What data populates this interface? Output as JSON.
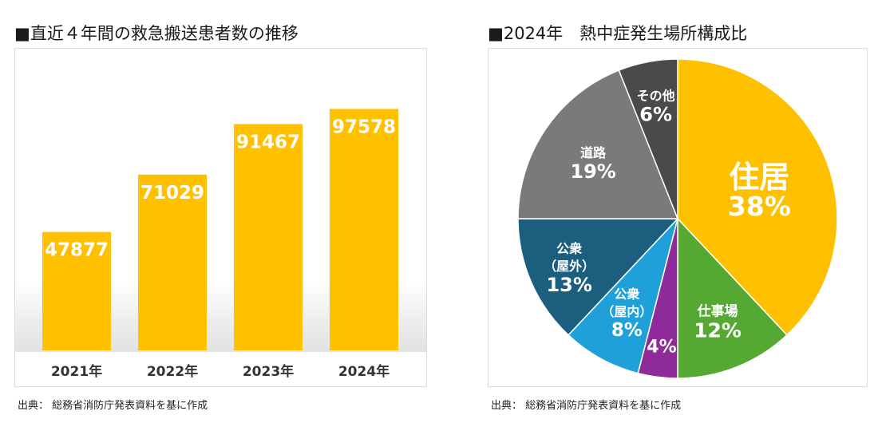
{
  "left": {
    "title": "■直近４年間の救急搬送患者数の推移",
    "source": "出典： 総務省消防庁発表資料を基に作成"
  },
  "right": {
    "title": "■2024年　熱中症発生場所構成比",
    "source": "出典： 総務省消防庁発表資料を基に作成"
  },
  "chart_data": [
    {
      "type": "bar",
      "categories": [
        "2021年",
        "2022年",
        "2023年",
        "2024年"
      ],
      "values": [
        47877,
        71029,
        91467,
        97578
      ],
      "data_labels": [
        "47877",
        "71029",
        "91467",
        "97578"
      ],
      "title": "■直近４年間の救急搬送患者数の推移",
      "xlabel": "",
      "ylabel": "",
      "ylim": [
        0,
        100000
      ],
      "grid": false,
      "bar_color": "#FFC000"
    },
    {
      "type": "pie",
      "title": "■2024年　熱中症発生場所構成比",
      "start": "top",
      "direction": "clockwise",
      "slices": [
        {
          "label": [
            "住居"
          ],
          "pct_text": "38%",
          "value": 38,
          "color": "#FFC000"
        },
        {
          "label": [
            "仕事場"
          ],
          "pct_text": "12%",
          "value": 12,
          "color": "#55A831"
        },
        {
          "label": [],
          "pct_text": "4%",
          "value": 4,
          "color": "#8E2A9A"
        },
        {
          "label": [
            "公衆",
            "（屋内）"
          ],
          "pct_text": "8%",
          "value": 8,
          "color": "#1FA0D8"
        },
        {
          "label": [
            "公衆",
            "（屋外）"
          ],
          "pct_text": "13%",
          "value": 13,
          "color": "#1B5E7E"
        },
        {
          "label": [
            "道路"
          ],
          "pct_text": "19%",
          "value": 19,
          "color": "#7A7A7A"
        },
        {
          "label": [
            "その他"
          ],
          "pct_text": "6%",
          "value": 6,
          "color": "#4A4A4A"
        }
      ]
    }
  ]
}
